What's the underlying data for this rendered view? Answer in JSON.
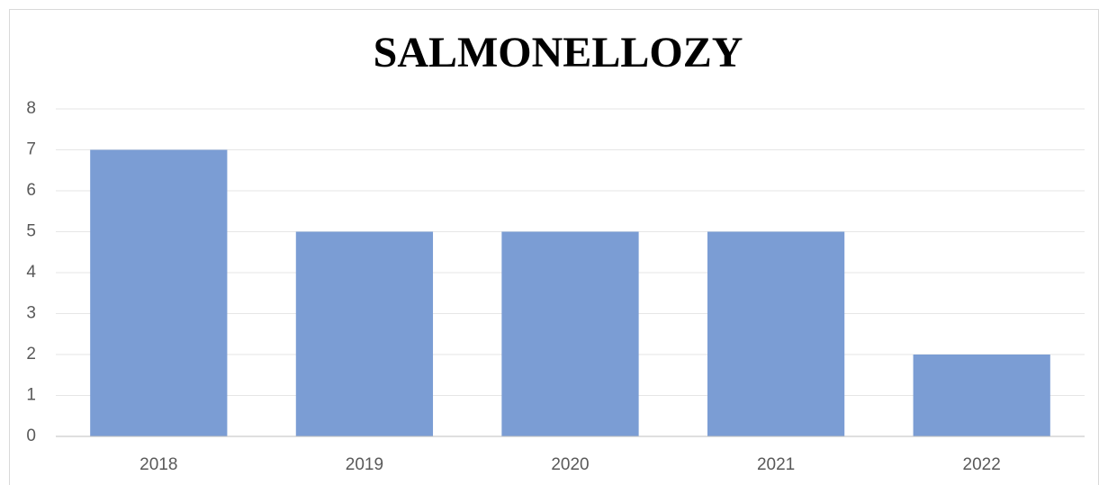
{
  "chart_data": {
    "type": "bar",
    "title": "SALMONELLOZY",
    "categories": [
      "2018",
      "2019",
      "2020",
      "2021",
      "2022"
    ],
    "values": [
      7,
      5,
      5,
      5,
      2
    ],
    "color": "#7b9dd4",
    "ylim": [
      0,
      8
    ],
    "yticks": [
      0,
      1,
      2,
      3,
      4,
      5,
      6,
      7,
      8
    ],
    "grid": true
  }
}
